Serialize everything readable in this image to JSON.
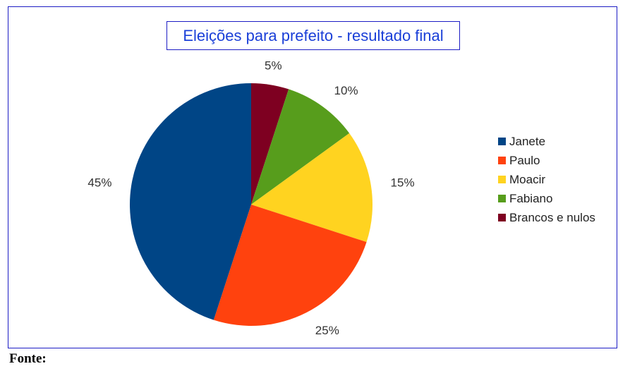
{
  "chart_data": {
    "type": "pie",
    "title": "Eleições para prefeito - resultado final",
    "categories": [
      "Janete",
      "Paulo",
      "Moacir",
      "Fabiano",
      "Brancos e nulos"
    ],
    "values": [
      45,
      25,
      15,
      10,
      5
    ],
    "labels": [
      "45%",
      "25%",
      "15%",
      "10%",
      "5%"
    ],
    "colors": [
      "#004586",
      "#ff420e",
      "#ffd320",
      "#579d1c",
      "#7e0021"
    ],
    "legend_position": "right"
  },
  "footer": {
    "source_label": "Fonte:"
  }
}
